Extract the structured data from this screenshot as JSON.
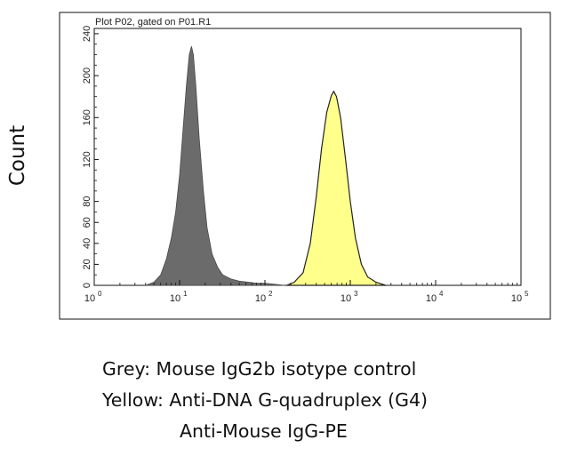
{
  "chart_data": {
    "type": "area",
    "title": "Plot P02, gated on P01.R1",
    "ylabel": "Count",
    "xlabel": "",
    "x_scale": "log",
    "xlim": [
      1,
      100000
    ],
    "ylim": [
      0,
      245
    ],
    "x_ticks": [
      {
        "value": 1,
        "base": "10",
        "exp": "0"
      },
      {
        "value": 10,
        "base": "10",
        "exp": "1"
      },
      {
        "value": 100,
        "base": "10",
        "exp": "2"
      },
      {
        "value": 1000,
        "base": "10",
        "exp": "3"
      },
      {
        "value": 10000,
        "base": "10",
        "exp": "4"
      },
      {
        "value": 100000,
        "base": "10",
        "exp": "5"
      }
    ],
    "y_ticks": [
      "0",
      "20",
      "40",
      "60",
      "80",
      "120",
      "160",
      "200",
      "240"
    ],
    "y_tick_values": [
      0,
      20,
      40,
      60,
      80,
      120,
      160,
      200,
      240
    ],
    "grid": false,
    "series": [
      {
        "color": "#6b6b6b",
        "points": [
          [
            4,
            0
          ],
          [
            5,
            3
          ],
          [
            6,
            10
          ],
          [
            7,
            25
          ],
          [
            8,
            45
          ],
          [
            9,
            70
          ],
          [
            10,
            105
          ],
          [
            11,
            150
          ],
          [
            12,
            190
          ],
          [
            13,
            220
          ],
          [
            13.8,
            228
          ],
          [
            14.5,
            220
          ],
          [
            15.5,
            190
          ],
          [
            17,
            140
          ],
          [
            19,
            90
          ],
          [
            21,
            55
          ],
          [
            24,
            30
          ],
          [
            28,
            17
          ],
          [
            32,
            10
          ],
          [
            40,
            6
          ],
          [
            50,
            4
          ],
          [
            65,
            3
          ],
          [
            80,
            2
          ],
          [
            100,
            2
          ],
          [
            130,
            1
          ],
          [
            170,
            0
          ]
        ]
      },
      {
        "color": "#ffff8c",
        "points": [
          [
            180,
            0
          ],
          [
            220,
            3
          ],
          [
            280,
            12
          ],
          [
            340,
            40
          ],
          [
            400,
            85
          ],
          [
            460,
            130
          ],
          [
            530,
            165
          ],
          [
            600,
            181
          ],
          [
            640,
            185
          ],
          [
            690,
            180
          ],
          [
            770,
            160
          ],
          [
            880,
            120
          ],
          [
            1000,
            80
          ],
          [
            1150,
            45
          ],
          [
            1350,
            20
          ],
          [
            1600,
            8
          ],
          [
            2000,
            3
          ],
          [
            2600,
            0
          ]
        ]
      }
    ]
  },
  "captions": {
    "line1": "Grey: Mouse IgG2b isotype control",
    "line2": "Yellow: Anti-DNA G-quadruplex (G4)",
    "line3": "Anti-Mouse IgG-PE"
  }
}
